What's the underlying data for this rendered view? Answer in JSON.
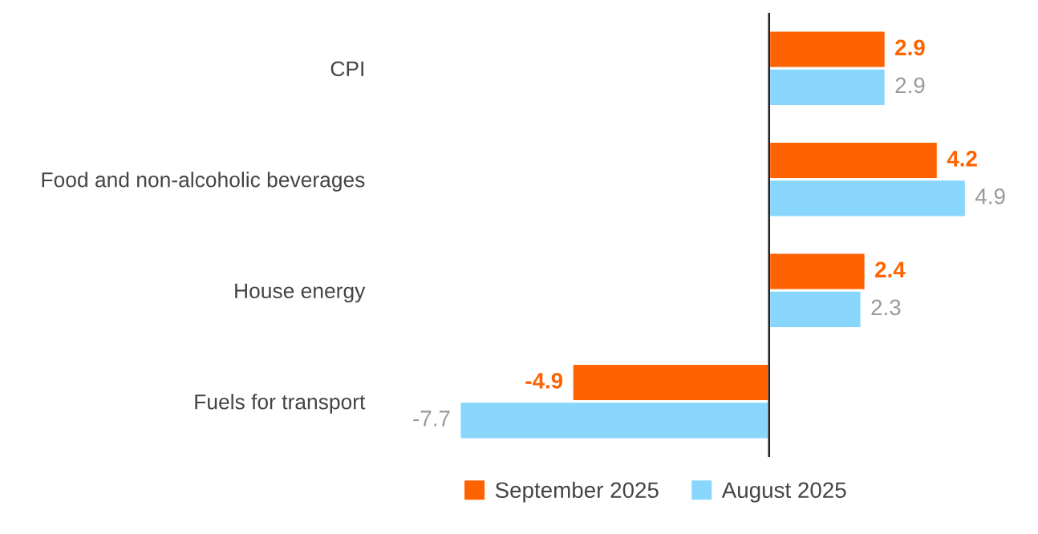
{
  "chart_data": {
    "type": "bar",
    "orientation": "horizontal",
    "categories": [
      "CPI",
      "Food and non-alcoholic beverages",
      "House energy",
      "Fuels for transport"
    ],
    "series": [
      {
        "name": "September 2025",
        "color": "#ff6200",
        "values": [
          2.9,
          4.2,
          2.4,
          -4.9
        ]
      },
      {
        "name": "August 2025",
        "color": "#89d6fd",
        "values": [
          2.9,
          4.9,
          2.3,
          -7.7
        ]
      }
    ],
    "tick_labels": "y",
    "data_labels": true,
    "grid": false,
    "legend": "bottom"
  }
}
